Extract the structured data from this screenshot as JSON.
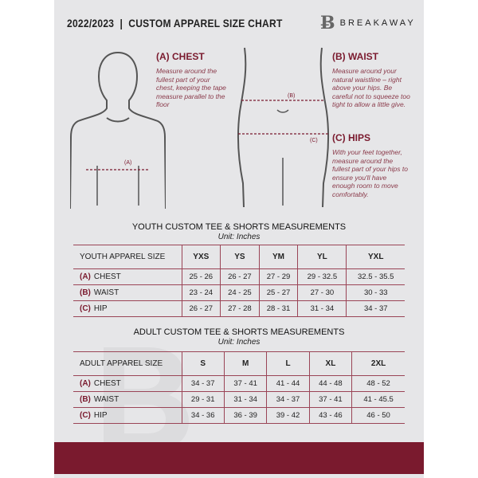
{
  "header": {
    "title": "2022/2023  |  CUSTOM APPAREL SIZE CHART",
    "brand": "BREAKAWAY",
    "brand_mark": "B"
  },
  "measures": {
    "chest": {
      "title": "(A) CHEST",
      "desc": "Measure around the fullest part of your chest, keeping the tape measure parallel to the floor",
      "marker": "(A)"
    },
    "waist": {
      "title": "(B) WAIST",
      "desc": "Measure around your natural waistline – right above your hips. Be careful not to squeeze too tight to allow a little give.",
      "marker": "(B)"
    },
    "hips": {
      "title": "(C) HIPS",
      "desc": "With your feet together, measure around the fullest part of your hips to ensure you'll have enough room to move comfortably.",
      "marker": "(C)"
    }
  },
  "colors": {
    "accent": "#7a1a2e",
    "background": "#e6e6e8"
  },
  "youth": {
    "heading": "YOUTH CUSTOM TEE & SHORTS MEASUREMENTS",
    "unit": "Unit: Inches",
    "label": "YOUTH APPAREL SIZE",
    "sizes": [
      "YXS",
      "YS",
      "YM",
      "YL",
      "YXL"
    ],
    "rows": [
      {
        "letter": "(A)",
        "name": "CHEST",
        "values": [
          "25 - 26",
          "26 - 27",
          "27 - 29",
          "29 - 32.5",
          "32.5 - 35.5"
        ]
      },
      {
        "letter": "(B)",
        "name": "WAIST",
        "values": [
          "23 - 24",
          "24 - 25",
          "25 - 27",
          "27 - 30",
          "30 - 33"
        ]
      },
      {
        "letter": "(C)",
        "name": "HIP",
        "values": [
          "26 - 27",
          "27 - 28",
          "28 - 31",
          "31 - 34",
          "34 - 37"
        ]
      }
    ]
  },
  "adult": {
    "heading": "ADULT CUSTOM TEE & SHORTS MEASUREMENTS",
    "unit": "Unit: Inches",
    "label": "ADULT APPAREL SIZE",
    "sizes": [
      "S",
      "M",
      "L",
      "XL",
      "2XL"
    ],
    "rows": [
      {
        "letter": "(A)",
        "name": "CHEST",
        "values": [
          "34 - 37",
          "37 - 41",
          "41 - 44",
          "44 - 48",
          "48 - 52"
        ]
      },
      {
        "letter": "(B)",
        "name": "WAIST",
        "values": [
          "29 - 31",
          "31 - 34",
          "34 - 37",
          "37 - 41",
          "41 - 45.5"
        ]
      },
      {
        "letter": "(C)",
        "name": "HIP",
        "values": [
          "34 - 36",
          "36 - 39",
          "39 - 42",
          "43 - 46",
          "46 - 50"
        ]
      }
    ]
  }
}
